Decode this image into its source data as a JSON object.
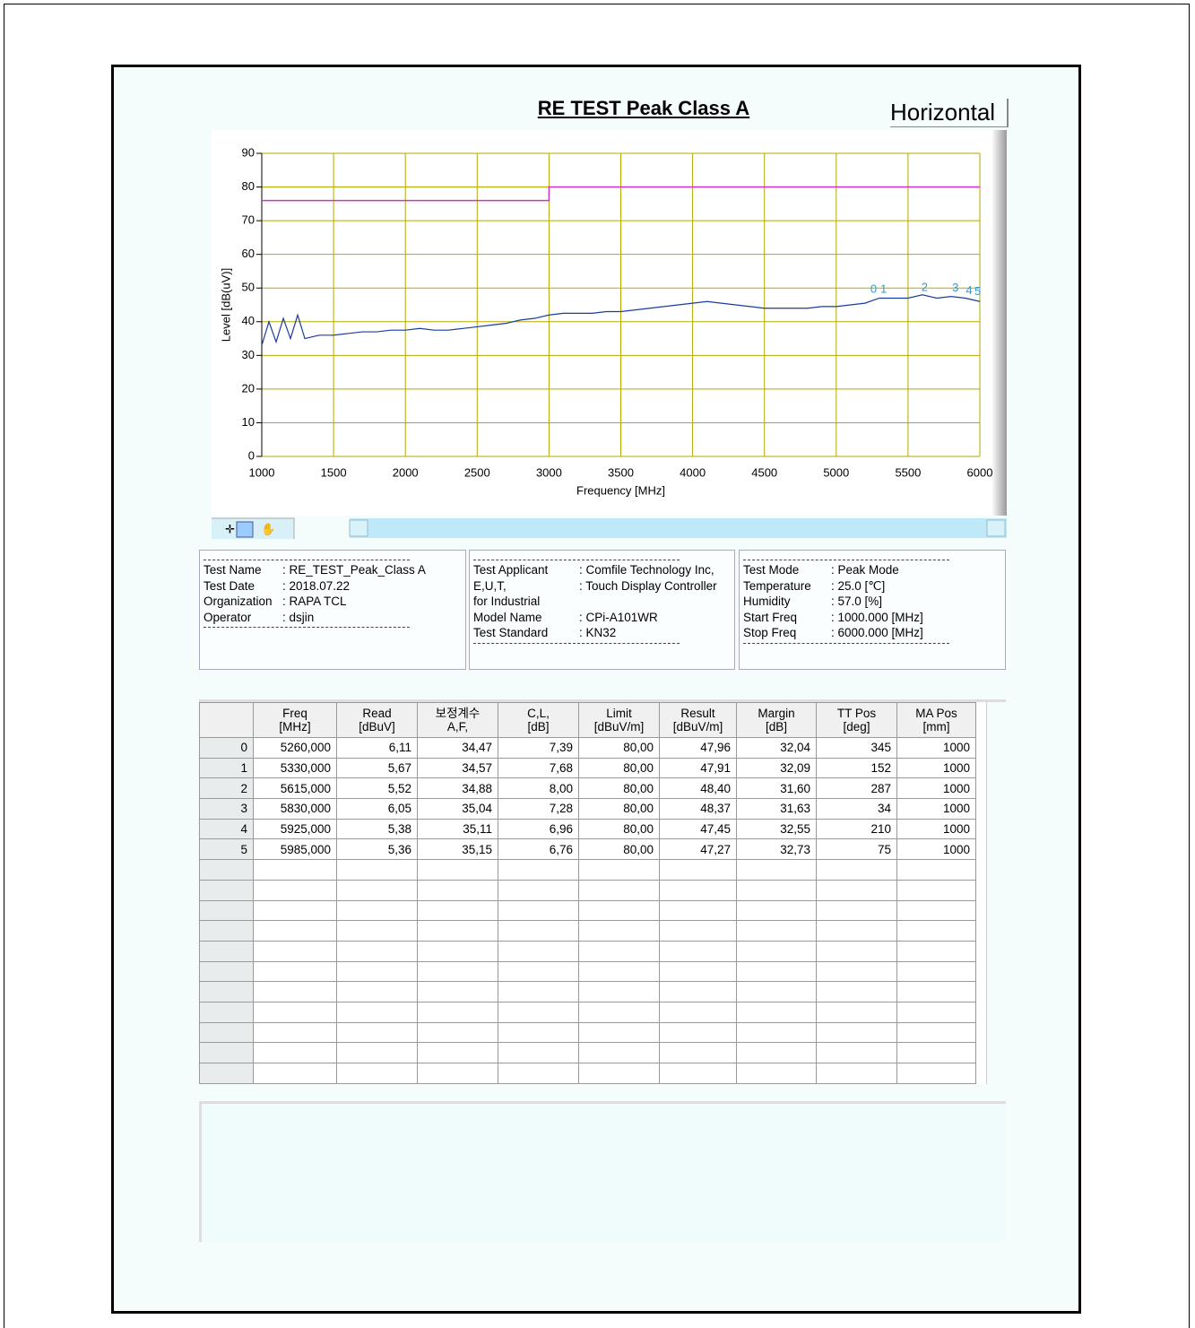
{
  "header": {
    "title": "RE TEST Peak Class A",
    "polarization": "Horizontal"
  },
  "chart_data": {
    "type": "line",
    "y_label": "Level [dB(uV)]",
    "x_label": "Frequency [MHz]",
    "xlim": [
      1000,
      6000
    ],
    "ylim": [
      0,
      90
    ],
    "xticks": [
      1000,
      1500,
      2000,
      2500,
      3000,
      3500,
      4000,
      4500,
      5000,
      5500,
      6000
    ],
    "yticks": [
      0,
      10,
      20,
      30,
      40,
      50,
      60,
      70,
      80,
      90
    ],
    "grid": true,
    "grid_color": "#b5a800",
    "series": [
      {
        "color": "#1a3c9c",
        "x": [
          1000,
          1050,
          1100,
          1150,
          1200,
          1250,
          1300,
          1400,
          1500,
          1600,
          1700,
          1800,
          1900,
          2000,
          2100,
          2200,
          2300,
          2400,
          2500,
          2600,
          2700,
          2800,
          2900,
          3000,
          3100,
          3200,
          3300,
          3400,
          3500,
          3600,
          3700,
          3800,
          3900,
          4000,
          4100,
          4200,
          4300,
          4400,
          4500,
          4600,
          4700,
          4800,
          4900,
          5000,
          5100,
          5200,
          5300,
          5400,
          5500,
          5600,
          5700,
          5800,
          5900,
          6000
        ],
        "values": [
          33,
          40,
          34,
          41,
          35,
          42,
          35,
          36,
          36,
          36.5,
          37,
          37,
          37.5,
          37.5,
          38,
          37.5,
          37.5,
          38,
          38.5,
          39,
          39.5,
          40.5,
          41,
          42,
          42.5,
          42.5,
          42.5,
          43,
          43,
          43.5,
          44,
          44.5,
          45,
          45.5,
          46,
          45.5,
          45,
          44.5,
          44,
          44,
          44,
          44,
          44.5,
          44.5,
          45,
          45.5,
          47,
          47,
          47,
          48,
          47,
          47.5,
          47,
          46
        ]
      },
      {
        "color": "#cc33cc",
        "x": [
          1000,
          3000,
          3000,
          6000
        ],
        "values": [
          76,
          76,
          80,
          80
        ]
      }
    ],
    "markers": {
      "color": "#3399cc",
      "labels": [
        "0",
        "1",
        "2",
        "3",
        "4",
        "5"
      ],
      "x": [
        5260,
        5330,
        5615,
        5830,
        5925,
        5985
      ],
      "values": [
        47.96,
        47.91,
        48.4,
        48.37,
        47.45,
        47.27
      ]
    }
  },
  "info": [
    [
      {
        "label": "Test Name",
        "value": ": RE_TEST_Peak_Class A"
      },
      {
        "label": "Test Date",
        "value": ": 2018.07.22"
      },
      {
        "label": "Organization",
        "value": ": RAPA TCL"
      },
      {
        "label": "Operator",
        "value": ": dsjin"
      }
    ],
    [
      {
        "label": "Test Applicant",
        "value": ": Comfile Technology Inc,"
      },
      {
        "label": "E,U,T,",
        "value": ": Touch Display Controller for Industrial"
      },
      {
        "label": "Model Name",
        "value": ": CPi-A101WR"
      },
      {
        "label": "Test Standard",
        "value": ": KN32"
      }
    ],
    [
      {
        "label": "Test Mode",
        "value": ": Peak Mode"
      },
      {
        "label": "Temperature",
        "value": ":  25.0 [℃]"
      },
      {
        "label": "Humidity",
        "value": ":  57.0 [%]"
      },
      {
        "label": "Start Freq",
        "value": ":  1000.000 [MHz]"
      },
      {
        "label": "Stop Freq",
        "value": ":  6000.000 [MHz]"
      }
    ]
  ],
  "table": {
    "headers": [
      [
        "Freq",
        "[MHz]"
      ],
      [
        "Read",
        "[dBuV]"
      ],
      [
        "보정계수",
        "A,F,"
      ],
      [
        "C,L,",
        "[dB]"
      ],
      [
        "Limit",
        "[dBuV/m]"
      ],
      [
        "Result",
        "[dBuV/m]"
      ],
      [
        "Margin",
        "[dB]"
      ],
      [
        "TT Pos",
        "[deg]"
      ],
      [
        "MA Pos",
        "[mm]"
      ]
    ],
    "rows": [
      [
        "0",
        "5260,000",
        "6,11",
        "34,47",
        "7,39",
        "80,00",
        "47,96",
        "32,04",
        "345",
        "1000"
      ],
      [
        "1",
        "5330,000",
        "5,67",
        "34,57",
        "7,68",
        "80,00",
        "47,91",
        "32,09",
        "152",
        "1000"
      ],
      [
        "2",
        "5615,000",
        "5,52",
        "34,88",
        "8,00",
        "80,00",
        "48,40",
        "31,60",
        "287",
        "1000"
      ],
      [
        "3",
        "5830,000",
        "6,05",
        "35,04",
        "7,28",
        "80,00",
        "48,37",
        "31,63",
        "34",
        "1000"
      ],
      [
        "4",
        "5925,000",
        "5,38",
        "35,11",
        "6,96",
        "80,00",
        "47,45",
        "32,55",
        "210",
        "1000"
      ],
      [
        "5",
        "5985,000",
        "5,36",
        "35,15",
        "6,76",
        "80,00",
        "47,27",
        "32,73",
        "75",
        "1000"
      ]
    ]
  }
}
